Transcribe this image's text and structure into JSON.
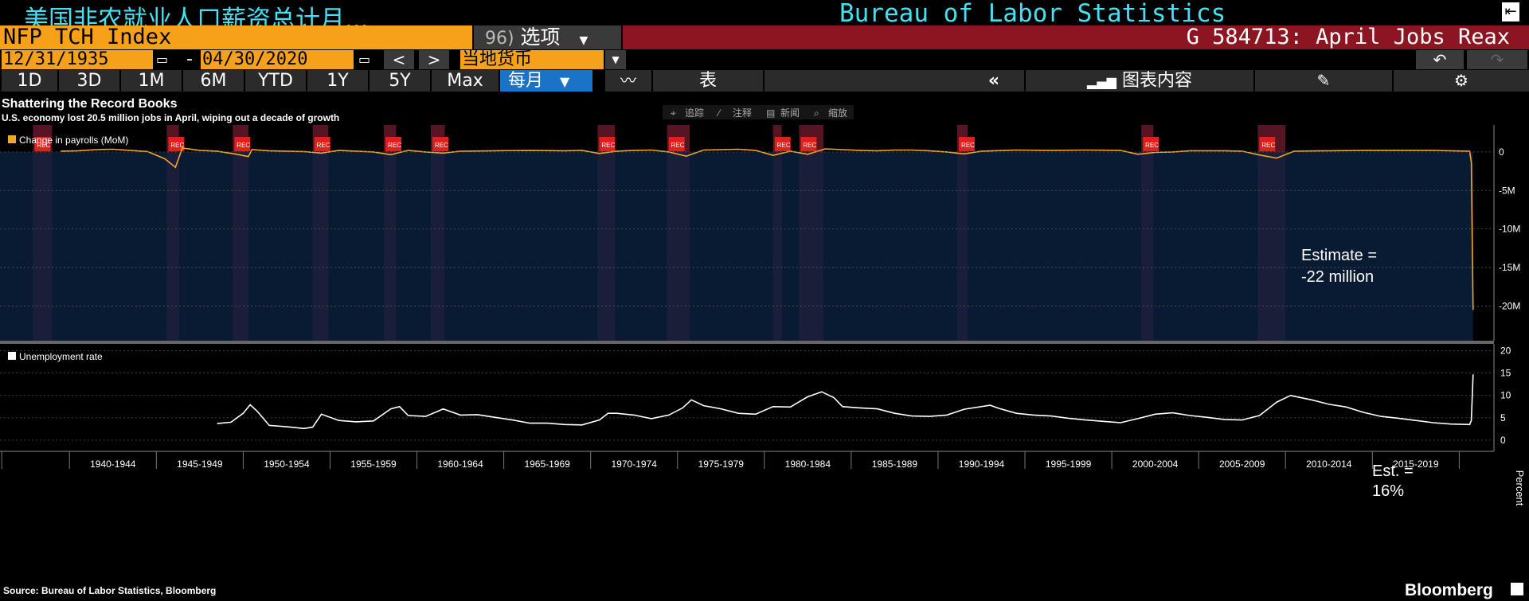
{
  "header": {
    "security_title": "美国非农就业人口薪资总计月...",
    "source_title": "Bureau of Labor Statistics",
    "exit_icon": "exit-icon"
  },
  "toolbar": {
    "ticker": "NFP TCH Index",
    "options_num": "96)",
    "options_label": "选项",
    "story": "G 584713: April Jobs Reax",
    "start_date": "12/31/1935",
    "end_date": "04/30/2020",
    "currency": "当地货币",
    "prev": "<",
    "next": ">"
  },
  "ranges": [
    "1D",
    "3D",
    "1M",
    "6M",
    "YTD",
    "1Y",
    "5Y",
    "Max"
  ],
  "frequency": "每月",
  "table_label": "表",
  "chart_content_label": "图表内容",
  "chart_tools": [
    "追踪",
    "注释",
    "新闻",
    "缩放"
  ],
  "chart_data": [
    {
      "type": "area",
      "title": "Shattering the Record Books",
      "subtitle": "U.S. economy lost 20.5 million jobs in April, wiping out a decade of growth",
      "legend": "Change in payrolls (MoM)",
      "annotation": [
        "Estimate =",
        "-22 million"
      ],
      "y_tick_labels": [
        "0",
        "-5M",
        "-10M",
        "-15M",
        "-20M"
      ],
      "y_ticks": [
        0,
        -5,
        -10,
        -15,
        -20
      ],
      "ylim": [
        -24.5,
        3.5
      ],
      "y_unit": "million",
      "series": [
        {
          "name": "Change in payrolls (MoM)",
          "color": "#f5a623",
          "fill": "#0b2240",
          "points": [
            [
              1939,
              0.1
            ],
            [
              1940,
              0.15
            ],
            [
              1941,
              0.3
            ],
            [
              1942,
              0.35
            ],
            [
              1943,
              0.2
            ],
            [
              1944,
              0.05
            ],
            [
              1945,
              -0.9
            ],
            [
              1945.6,
              -2.0
            ],
            [
              1946,
              0.5
            ],
            [
              1947,
              0.2
            ],
            [
              1948,
              0.1
            ],
            [
              1949,
              -0.25
            ],
            [
              1949.8,
              -0.6
            ],
            [
              1950,
              0.3
            ],
            [
              1951,
              0.15
            ],
            [
              1952,
              0.1
            ],
            [
              1953,
              0.05
            ],
            [
              1954,
              -0.15
            ],
            [
              1955,
              0.2
            ],
            [
              1956,
              0.1
            ],
            [
              1957,
              0.0
            ],
            [
              1958,
              -0.35
            ],
            [
              1959,
              0.2
            ],
            [
              1960,
              0.0
            ],
            [
              1961,
              -0.15
            ],
            [
              1962,
              0.1
            ],
            [
              1964,
              0.15
            ],
            [
              1966,
              0.2
            ],
            [
              1968,
              0.15
            ],
            [
              1969,
              0.2
            ],
            [
              1970,
              -0.2
            ],
            [
              1971,
              0.1
            ],
            [
              1972,
              0.2
            ],
            [
              1973,
              0.25
            ],
            [
              1974,
              0.0
            ],
            [
              1975,
              -0.55
            ],
            [
              1976,
              0.25
            ],
            [
              1977,
              0.3
            ],
            [
              1978,
              0.35
            ],
            [
              1979,
              0.2
            ],
            [
              1980,
              -0.45
            ],
            [
              1981,
              0.1
            ],
            [
              1982,
              -0.3
            ],
            [
              1983,
              0.4
            ],
            [
              1984,
              0.3
            ],
            [
              1985,
              0.2
            ],
            [
              1986,
              0.15
            ],
            [
              1987,
              0.25
            ],
            [
              1988,
              0.25
            ],
            [
              1989,
              0.15
            ],
            [
              1990,
              0.0
            ],
            [
              1991,
              -0.25
            ],
            [
              1992,
              0.1
            ],
            [
              1994,
              0.25
            ],
            [
              1996,
              0.2
            ],
            [
              1998,
              0.25
            ],
            [
              2000,
              0.2
            ],
            [
              2001,
              -0.3
            ],
            [
              2002,
              -0.05
            ],
            [
              2003,
              0.0
            ],
            [
              2004,
              0.15
            ],
            [
              2006,
              0.15
            ],
            [
              2007,
              0.1
            ],
            [
              2008,
              -0.4
            ],
            [
              2009,
              -0.8
            ],
            [
              2010,
              0.1
            ],
            [
              2012,
              0.15
            ],
            [
              2014,
              0.2
            ],
            [
              2016,
              0.2
            ],
            [
              2018,
              0.2
            ],
            [
              2019,
              0.15
            ],
            [
              2020.1,
              0.1
            ],
            [
              2020.2,
              -1.4
            ],
            [
              2020.3,
              -20.5
            ]
          ]
        }
      ]
    },
    {
      "type": "line",
      "legend": "Unemployment rate",
      "ylabel": "Percent",
      "annotation": [
        "Est. =",
        "16%"
      ],
      "y_ticks": [
        0,
        5,
        10,
        15,
        20
      ],
      "ylim": [
        -2.5,
        21.5
      ],
      "series": [
        {
          "name": "Unemployment rate",
          "color": "#ffffff",
          "points": [
            [
              1948,
              3.7
            ],
            [
              1948.8,
              4.0
            ],
            [
              1949.5,
              6.0
            ],
            [
              1949.9,
              7.9
            ],
            [
              1950.3,
              6.5
            ],
            [
              1951,
              3.3
            ],
            [
              1952,
              3.0
            ],
            [
              1953,
              2.6
            ],
            [
              1953.5,
              2.9
            ],
            [
              1954,
              5.8
            ],
            [
              1955,
              4.4
            ],
            [
              1956,
              4.1
            ],
            [
              1957,
              4.3
            ],
            [
              1958,
              7.0
            ],
            [
              1958.5,
              7.5
            ],
            [
              1959,
              5.5
            ],
            [
              1960,
              5.3
            ],
            [
              1960.8,
              6.6
            ],
            [
              1961,
              7.0
            ],
            [
              1962,
              5.6
            ],
            [
              1963,
              5.7
            ],
            [
              1964,
              5.1
            ],
            [
              1965,
              4.5
            ],
            [
              1966,
              3.8
            ],
            [
              1967,
              3.8
            ],
            [
              1968,
              3.5
            ],
            [
              1969,
              3.4
            ],
            [
              1970,
              4.5
            ],
            [
              1970.5,
              6.0
            ],
            [
              1971,
              6.0
            ],
            [
              1972,
              5.6
            ],
            [
              1973,
              4.8
            ],
            [
              1974,
              5.6
            ],
            [
              1974.8,
              7.2
            ],
            [
              1975.3,
              9.0
            ],
            [
              1976,
              7.7
            ],
            [
              1977,
              7.0
            ],
            [
              1978,
              6.0
            ],
            [
              1979,
              5.8
            ],
            [
              1980,
              7.5
            ],
            [
              1981,
              7.4
            ],
            [
              1982,
              9.7
            ],
            [
              1982.8,
              10.8
            ],
            [
              1983.5,
              9.5
            ],
            [
              1984,
              7.5
            ],
            [
              1985,
              7.2
            ],
            [
              1986,
              7.0
            ],
            [
              1987,
              6.0
            ],
            [
              1988,
              5.4
            ],
            [
              1989,
              5.3
            ],
            [
              1990,
              5.6
            ],
            [
              1991,
              6.9
            ],
            [
              1992.5,
              7.8
            ],
            [
              1993,
              7.1
            ],
            [
              1994,
              6.0
            ],
            [
              1995,
              5.6
            ],
            [
              1996,
              5.4
            ],
            [
              1997,
              4.9
            ],
            [
              1998,
              4.5
            ],
            [
              1999,
              4.2
            ],
            [
              2000,
              3.9
            ],
            [
              2001,
              4.8
            ],
            [
              2002,
              5.8
            ],
            [
              2003,
              6.1
            ],
            [
              2004,
              5.5
            ],
            [
              2005,
              5.1
            ],
            [
              2006,
              4.6
            ],
            [
              2007,
              4.5
            ],
            [
              2008,
              5.5
            ],
            [
              2009,
              8.5
            ],
            [
              2009.8,
              10.0
            ],
            [
              2010,
              9.8
            ],
            [
              2011,
              9.0
            ],
            [
              2012,
              8.0
            ],
            [
              2013,
              7.4
            ],
            [
              2014,
              6.2
            ],
            [
              2015,
              5.3
            ],
            [
              2016,
              4.9
            ],
            [
              2017,
              4.4
            ],
            [
              2018,
              3.9
            ],
            [
              2019,
              3.6
            ],
            [
              2020.1,
              3.5
            ],
            [
              2020.2,
              4.4
            ],
            [
              2020.3,
              14.7
            ]
          ]
        }
      ]
    }
  ],
  "x_axis": {
    "labels": [
      "1940-1944",
      "1945-1949",
      "1950-1954",
      "1955-1959",
      "1960-1964",
      "1965-1969",
      "1970-1974",
      "1975-1979",
      "1980-1984",
      "1985-1989",
      "1990-1994",
      "1995-1999",
      "2000-2004",
      "2005-2009",
      "2010-2014",
      "2015-2019"
    ],
    "xlim": [
      1935.5,
      2021.5
    ]
  },
  "recessions": [
    [
      1937.4,
      1938.5
    ],
    [
      1945.1,
      1945.8
    ],
    [
      1948.9,
      1949.8
    ],
    [
      1953.5,
      1954.4
    ],
    [
      1957.6,
      1958.3
    ],
    [
      1960.3,
      1961.1
    ],
    [
      1969.9,
      1970.9
    ],
    [
      1973.9,
      1975.2
    ],
    [
      1980.0,
      1980.5
    ],
    [
      1981.5,
      1982.9
    ],
    [
      1990.6,
      1991.2
    ],
    [
      2001.2,
      2001.9
    ],
    [
      2007.9,
      2009.5
    ]
  ],
  "recession_label": "REC",
  "footer": {
    "source": "Source: Bureau of Labor Statistics, Bloomberg",
    "brand": "Bloomberg"
  }
}
